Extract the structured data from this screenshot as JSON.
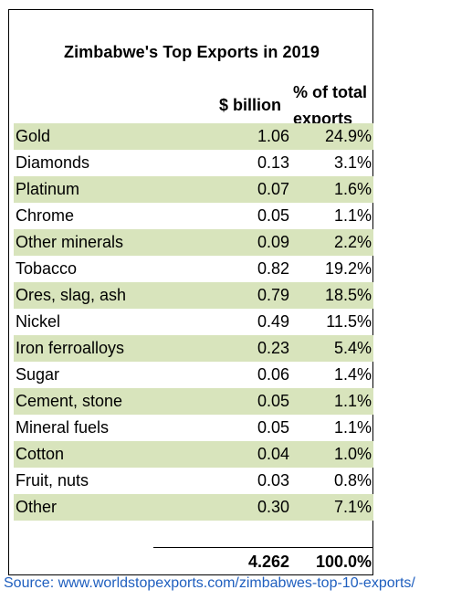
{
  "colors": {
    "band": "#d8e4bc",
    "source": "#1f5fbf"
  },
  "chart_data": {
    "type": "table",
    "title": "Zimbabwe's Top Exports in 2019",
    "columns": [
      "",
      "$ billion",
      "% of total exports"
    ],
    "column_header_lines": {
      "value": "$ billion",
      "pct_line1": "% of total",
      "pct_line2": "exports"
    },
    "rows": [
      {
        "name": "Gold",
        "value": "1.06",
        "pct": "24.9%"
      },
      {
        "name": "Diamonds",
        "value": "0.13",
        "pct": "3.1%"
      },
      {
        "name": "Platinum",
        "value": "0.07",
        "pct": "1.6%"
      },
      {
        "name": "Chrome",
        "value": "0.05",
        "pct": "1.1%"
      },
      {
        "name": "Other minerals",
        "value": "0.09",
        "pct": "2.2%"
      },
      {
        "name": "Tobacco",
        "value": "0.82",
        "pct": "19.2%"
      },
      {
        "name": "Ores, slag, ash",
        "value": "0.79",
        "pct": "18.5%"
      },
      {
        "name": "Nickel",
        "value": "0.49",
        "pct": "11.5%"
      },
      {
        "name": "Iron ferroalloys",
        "value": "0.23",
        "pct": "5.4%"
      },
      {
        "name": "Sugar",
        "value": "0.06",
        "pct": "1.4%"
      },
      {
        "name": "Cement, stone",
        "value": "0.05",
        "pct": "1.1%"
      },
      {
        "name": "Mineral fuels",
        "value": "0.05",
        "pct": "1.1%"
      },
      {
        "name": "Cotton",
        "value": "0.04",
        "pct": "1.0%"
      },
      {
        "name": "Fruit, nuts",
        "value": "0.03",
        "pct": "0.8%"
      },
      {
        "name": "Other",
        "value": "0.30",
        "pct": "7.1%"
      }
    ],
    "total": {
      "value": "4.262",
      "pct": "100.0%"
    }
  },
  "source": "Source: www.worldstopexports.com/zimbabwes-top-10-exports/"
}
